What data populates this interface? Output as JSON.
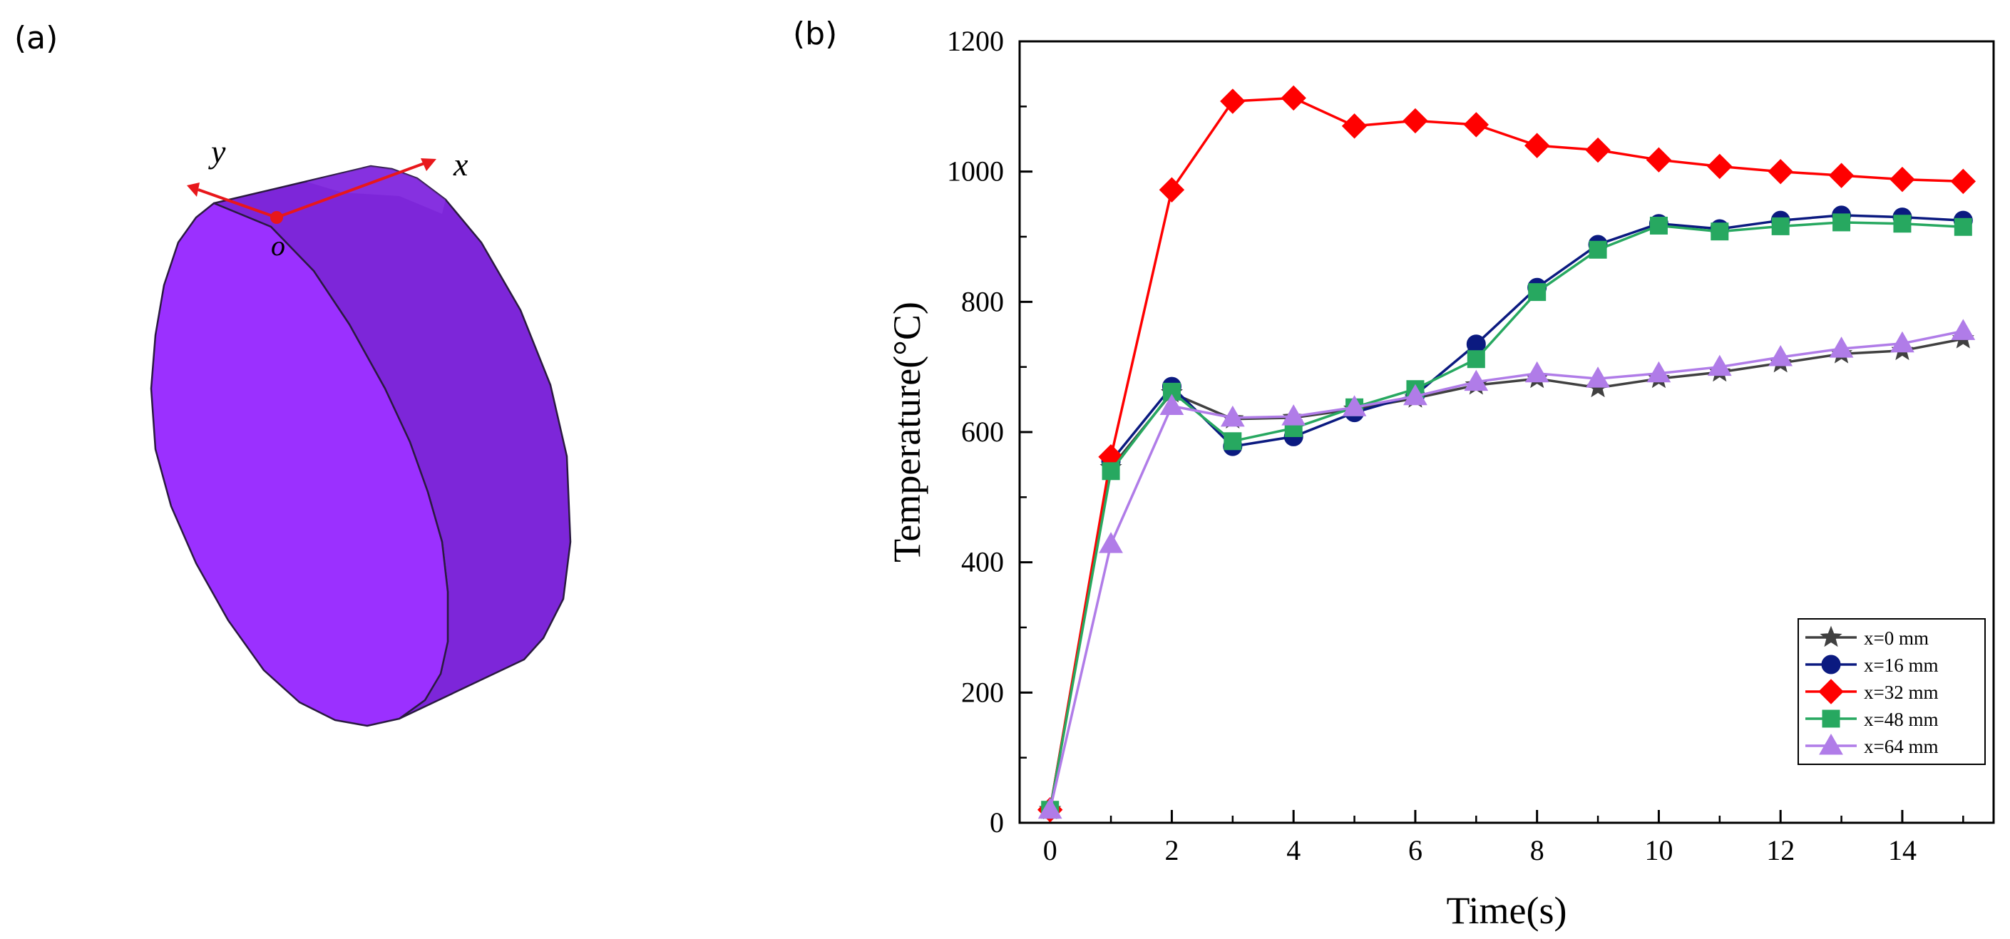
{
  "panel_a": {
    "label": "(a)",
    "axes": {
      "x": "x",
      "y": "y",
      "origin": "o"
    },
    "colors": {
      "face": "#9b30ff",
      "side": "#7d26d9",
      "edge": "#2a1a40",
      "axis": "#e8171b"
    }
  },
  "panel_b": {
    "label": "(b)"
  },
  "chart_data": {
    "type": "line",
    "title": "",
    "xlabel": "Time(s)",
    "ylabel": "Temperature(°C)",
    "xlim": [
      -0.5,
      15.5
    ],
    "ylim": [
      0,
      1200
    ],
    "xticks": [
      0,
      2,
      4,
      6,
      8,
      10,
      12,
      14
    ],
    "yticks": [
      0,
      200,
      400,
      600,
      800,
      1000,
      1200
    ],
    "x": [
      0,
      1,
      2,
      3,
      4,
      5,
      6,
      7,
      8,
      9,
      10,
      11,
      12,
      13,
      14,
      15
    ],
    "legend_position": "bottom-right",
    "series": [
      {
        "name": "x=0 mm",
        "color": "#404040",
        "marker": "star",
        "values": [
          20,
          545,
          660,
          620,
          622,
          635,
          652,
          672,
          682,
          668,
          682,
          692,
          706,
          720,
          725,
          743
        ]
      },
      {
        "name": "x=16 mm",
        "color": "#0b1a80",
        "marker": "circle",
        "values": [
          20,
          555,
          670,
          578,
          593,
          630,
          657,
          735,
          822,
          888,
          920,
          912,
          925,
          933,
          930,
          925
        ]
      },
      {
        "name": "x=32 mm",
        "color": "#ff0000",
        "marker": "diamond",
        "values": [
          20,
          562,
          972,
          1108,
          1113,
          1070,
          1078,
          1072,
          1040,
          1033,
          1018,
          1008,
          1000,
          994,
          988,
          985
        ]
      },
      {
        "name": "x=48 mm",
        "color": "#27a860",
        "marker": "square",
        "values": [
          20,
          540,
          662,
          586,
          606,
          638,
          666,
          712,
          815,
          880,
          917,
          908,
          916,
          922,
          920,
          915
        ]
      },
      {
        "name": "x=64 mm",
        "color": "#b07ce8",
        "marker": "triangle",
        "values": [
          20,
          428,
          640,
          622,
          624,
          638,
          655,
          677,
          690,
          682,
          690,
          700,
          715,
          728,
          736,
          755
        ]
      }
    ]
  }
}
